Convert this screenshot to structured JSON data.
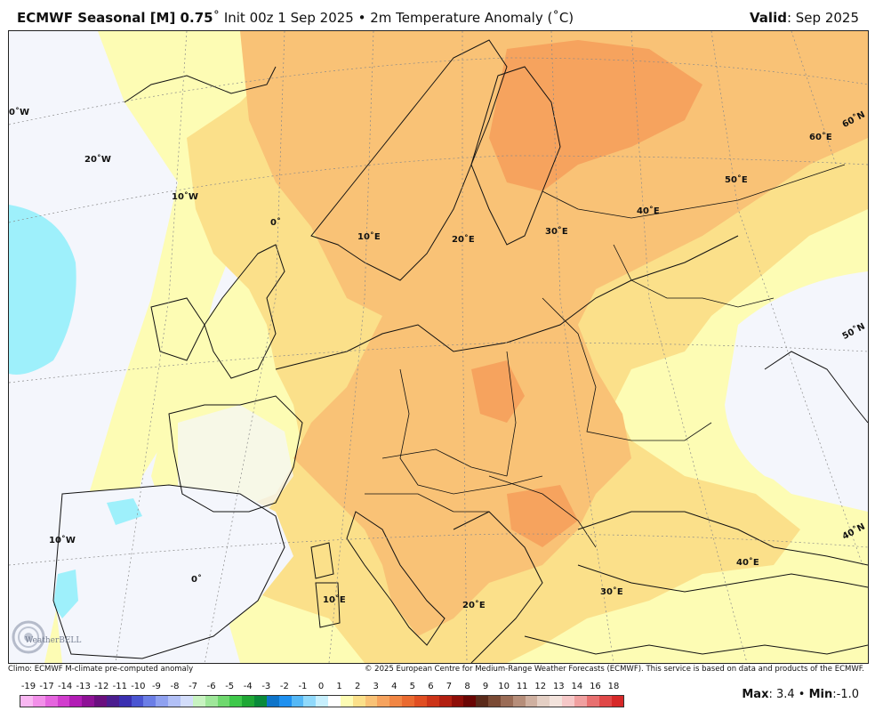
{
  "header": {
    "title_main": "ECMWF Seasonal [M] 0.75",
    "title_rest": "˚ Init 00z 1 Sep 2025 • 2m Temperature Anomaly (˚C)",
    "valid_label": "Valid",
    "valid_value": ": Sep 2025"
  },
  "map": {
    "grid_labels": {
      "lon_0W": "0˚W",
      "lon_20W": "20˚W",
      "lon_10W_top": "10˚W",
      "lon_0": "0˚",
      "lon_10E": "10˚E",
      "lon_20E": "20˚E",
      "lon_30E": "30˚E",
      "lon_40E": "40˚E",
      "lon_50E": "50˚E",
      "lon_60E": "60˚E",
      "lat_60N": "60˚N",
      "lat_50N": "50˚N",
      "lat_40N": "40˚N",
      "lon_10W_bottom": "10˚W",
      "lon_0_bottom": "0˚",
      "lon_10E_bottom": "10˚E",
      "lon_20E_bottom": "20˚E",
      "lon_30E_bottom": "30˚E",
      "lon_40E_bottom": "40˚E"
    },
    "colors": {
      "ocean": "#f4f6fc",
      "anom_0_1": "#ffffff",
      "anom_1_2": "#fdfcb4",
      "anom_2_3": "#fbe08a",
      "anom_3_4": "#f9c276",
      "anom_4_5": "#f6a35e",
      "cold_neg1": "#9ef0fb",
      "land_border": "#111111"
    }
  },
  "logo_text": "WeatherBELL",
  "footer": {
    "climo": "Climo: ECMWF M-climate pre-computed anomaly",
    "copyright": "© 2025 European Centre for Medium-Range Weather Forecasts (ECMWF). This service is based on data and products of the ECMWF."
  },
  "legend": {
    "ticks": [
      "-19",
      "-17",
      "-14",
      "-13",
      "-12",
      "-11",
      "-10",
      "-9",
      "-8",
      "-7",
      "-6",
      "-5",
      "-4",
      "-3",
      "-2",
      "-1",
      "0",
      "1",
      "2",
      "3",
      "4",
      "5",
      "6",
      "7",
      "8",
      "9",
      "10",
      "11",
      "12",
      "13",
      "14",
      "16",
      "18"
    ],
    "colors": [
      "#f9b7f2",
      "#f28fe9",
      "#e565de",
      "#d13dcd",
      "#b21cb5",
      "#8e1196",
      "#6a0f7f",
      "#4b1d8f",
      "#3a2fb0",
      "#4a55d1",
      "#6b7ee6",
      "#8fa1f0",
      "#b2c0f6",
      "#d3ddfa",
      "#c8f3c1",
      "#9fe79a",
      "#6fd86e",
      "#3ec84a",
      "#1fa735",
      "#0a8a3a",
      "#0e74c9",
      "#1e90f0",
      "#55b8f6",
      "#90d9fb",
      "#c7effd",
      "#ffffff",
      "#fdfcb4",
      "#fbe08a",
      "#f9c276",
      "#f6a35e",
      "#f18644",
      "#ea6a30",
      "#e04e22",
      "#cc3418",
      "#b21f10",
      "#8e0e08",
      "#6a0604",
      "#5a2a1a",
      "#7a4a34",
      "#9a6c56",
      "#b68e7a",
      "#cfb0a0",
      "#e4cfc4",
      "#f3e3dc",
      "#f6c8c8",
      "#f0a0a0",
      "#e87070",
      "#e04848",
      "#d62828"
    ],
    "max_label": "Max",
    "max_value": ": 3.4 • ",
    "min_label": "Min",
    "min_value": ":-1.0"
  }
}
